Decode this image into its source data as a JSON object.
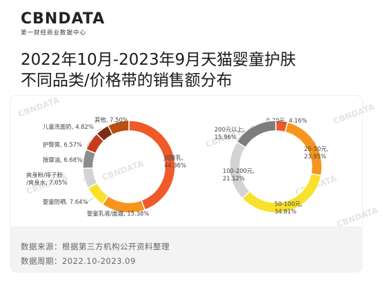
{
  "brand": {
    "logo": "CBNDATA",
    "subtitle": "第一财经商业数据中心"
  },
  "title_line1": "2022年10月-2023年9月天猫婴童护肤",
  "title_line2": "不同品类/价格带的销售额分布",
  "footer": {
    "source": "数据来源：根据第三方机构公开资料整理",
    "period": "数据周期：2022.10-2023.09"
  },
  "watermark": "CBNDATA",
  "colors": {
    "orange_red": "#f05a28",
    "orange": "#f7941d",
    "yellow": "#f7e12b",
    "light_gray": "#d3d3d3",
    "gray": "#8c8c8c",
    "brick": "#c83c1e",
    "brown": "#b8500f",
    "dark_gray": "#7d7d7d"
  },
  "chart_data": [
    {
      "type": "pie",
      "donut": true,
      "slices": [
        {
          "label": "润肤乳",
          "value": 44.36,
          "text": "润肤乳,\n44.36%",
          "color": "#f05a28"
        },
        {
          "label": "婴童乳液/面霜",
          "value": 15.38,
          "text": "婴童乳液/面霜, 15.38%",
          "color": "#f7941d"
        },
        {
          "label": "婴童防晒",
          "value": 7.64,
          "text": "婴童防晒, 7.64%",
          "color": "#f7e12b"
        },
        {
          "label": "爽身粉/痱子粉/爽身水",
          "value": 7.05,
          "text": "爽身粉/痱子粉\n/爽身水, 7.05%",
          "color": "#d3d3d3"
        },
        {
          "label": "按摩油",
          "value": 6.68,
          "text": "按摩油, 6.68%",
          "color": "#8c8c8c"
        },
        {
          "label": "护臀膏",
          "value": 6.57,
          "text": "护臀膏, 6.57%",
          "color": "#c83c1e"
        },
        {
          "label": "儿童洗面奶",
          "value": 4.82,
          "text": "儿童洗面奶, 4.82%",
          "color": "#7a2f12"
        },
        {
          "label": "其他",
          "value": 7.5,
          "text": "其他, 7.50%",
          "color": "#b8500f"
        }
      ]
    },
    {
      "type": "pie",
      "donut": true,
      "slices": [
        {
          "label": "0-20元",
          "value": 4.16,
          "text": "0-20元, 4.16%",
          "color": "#f05a28"
        },
        {
          "label": "20-50元",
          "value": 23.95,
          "text": "20-50元,\n23.95%",
          "color": "#f7941d"
        },
        {
          "label": "50-100元",
          "value": 34.81,
          "text": "50-100元,\n34.81%",
          "color": "#f7e12b"
        },
        {
          "label": "100-200元",
          "value": 21.12,
          "text": "100-200元,\n21.12%",
          "color": "#d3d3d3"
        },
        {
          "label": "200元以上",
          "value": 15.96,
          "text": "200元以上,\n15.96%",
          "color": "#7d7d7d"
        }
      ]
    }
  ]
}
